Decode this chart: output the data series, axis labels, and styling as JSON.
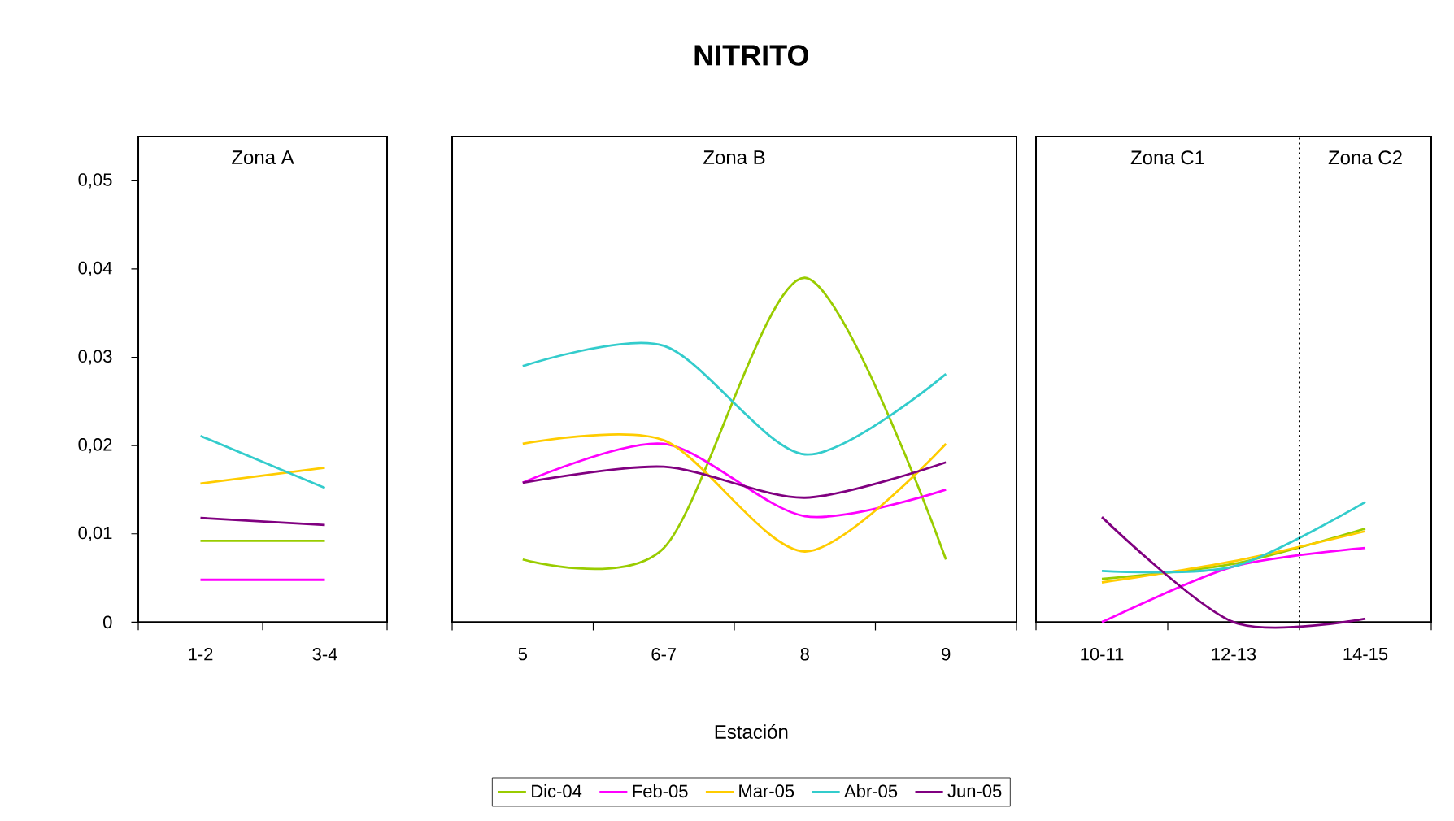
{
  "chart_data": [
    {
      "type": "line",
      "categories": [
        "1-2",
        "3-4"
      ],
      "annotations": [
        "Zona A"
      ],
      "marker": "none",
      "line_style": "solid",
      "ylim": [
        0,
        0.055
      ],
      "yticks": [
        0,
        {
          "value": 0.01,
          "label": "0,01"
        },
        {
          "value": 0.02,
          "label": "0,02"
        },
        {
          "value": 0.03,
          "label": "0,03"
        },
        {
          "value": 0.04,
          "label": "0,04"
        },
        {
          "value": 0.05,
          "label": "0,05"
        }
      ],
      "series": [
        {
          "color": "#99cc00",
          "values": [
            0.0092,
            0.0092
          ]
        },
        {
          "color": "#ff00ff",
          "values": [
            0.0048,
            0.0048
          ]
        },
        {
          "color": "#ffcc00",
          "values": [
            0.0157,
            0.0175
          ]
        },
        {
          "color": "#33cccc",
          "values": [
            0.0211,
            0.0152
          ]
        },
        {
          "color": "#800080",
          "values": [
            0.0118,
            0.011
          ]
        }
      ]
    },
    {
      "type": "line",
      "title": "NITRITO",
      "xlabel": "Estación",
      "legend": "bottom",
      "tick_labels": "x",
      "categories": [
        "5",
        "6-7",
        "8",
        "9"
      ],
      "annotations": [
        "Zona B"
      ],
      "marker": "none",
      "line_style": "solid",
      "ylim": [
        0,
        0.055
      ],
      "series": [
        {
          "name": "Dic-04",
          "color": "#99cc00",
          "values": [
            0.0071,
            0.0084,
            0.039,
            0.0071
          ]
        },
        {
          "name": "Feb-05",
          "color": "#ff00ff",
          "values": [
            0.0158,
            0.0202,
            0.012,
            0.015
          ]
        },
        {
          "name": "Mar-05",
          "color": "#ffcc00",
          "values": [
            0.0202,
            0.0206,
            0.008,
            0.0202
          ]
        },
        {
          "name": "Abr-05",
          "color": "#33cccc",
          "values": [
            0.029,
            0.0313,
            0.019,
            0.0281
          ]
        },
        {
          "name": "Jun-05",
          "color": "#800080",
          "values": [
            0.0158,
            0.0176,
            0.0141,
            0.0181
          ]
        }
      ]
    },
    {
      "type": "line",
      "tick_labels": "x",
      "categories": [
        "10-11",
        "12-13",
        "14-15"
      ],
      "annotations": [
        "Zona C1",
        "Zona C2"
      ],
      "marker": "none",
      "line_style": "solid",
      "ylim": [
        0,
        0.055
      ],
      "series": [
        {
          "color": "#99cc00",
          "values": [
            0.0049,
            0.0066,
            0.0106
          ]
        },
        {
          "color": "#ff00ff",
          "values": [
            0.0,
            0.0063,
            0.0084
          ]
        },
        {
          "color": "#ffcc00",
          "values": [
            0.0045,
            0.0069,
            0.0103
          ]
        },
        {
          "color": "#33cccc",
          "values": [
            0.0058,
            0.0063,
            0.0136
          ]
        },
        {
          "color": "#800080",
          "values": [
            0.0119,
            0.0,
            0.0004
          ]
        }
      ]
    }
  ]
}
